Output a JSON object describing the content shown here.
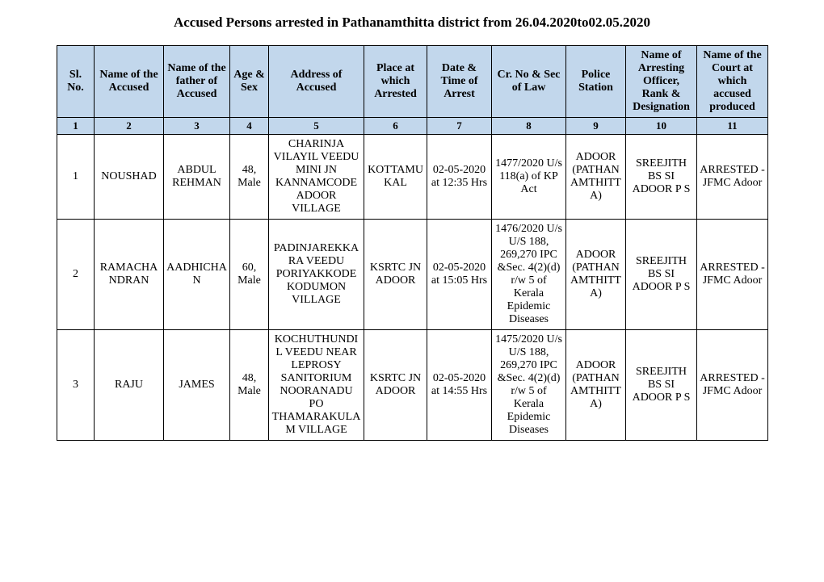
{
  "title": "Accused Persons arrested in  Pathanamthitta  district from  26.04.2020to02.05.2020",
  "colors": {
    "header_bg": "#c2d7ec",
    "border": "#000000",
    "text": "#000000",
    "background": "#ffffff"
  },
  "typography": {
    "title_fontsize_pt": 13,
    "cell_fontsize_pt": 11,
    "font_family": "Times New Roman"
  },
  "table": {
    "columns": [
      "Sl. No.",
      "Name of the Accused",
      "Name of the father of Accused",
      "Age & Sex",
      "Address of Accused",
      "Place at which Arrested",
      "Date & Time of Arrest",
      "Cr. No & Sec of Law",
      "Police Station",
      "Name of Arresting Officer, Rank & Designation",
      "Name of the Court at which accused produced"
    ],
    "number_row": [
      "1",
      "2",
      "3",
      "4",
      "5",
      "6",
      "7",
      "8",
      "9",
      "10",
      "11"
    ],
    "rows": [
      {
        "sl": "1",
        "accused": "NOUSHAD",
        "father": "ABDUL REHMAN",
        "age_sex": "48, Male",
        "address": "CHARINJA VILAYIL VEEDU MINI JN KANNAMCODE ADOOR VILLAGE",
        "place": "KOTTAMUKAL",
        "datetime": "02-05-2020 at 12:35 Hrs",
        "crno": "1477/2020 U/s 118(a) of KP Act",
        "ps": "ADOOR (PATHANAMTHITTA)",
        "officer": "SREEJITH BS SI ADOOR P S",
        "court": "ARRESTED - JFMC Adoor"
      },
      {
        "sl": "2",
        "accused": "RAMACHANDRAN",
        "father": "AADHICHAN",
        "age_sex": "60, Male",
        "address": "PADINJAREKKARA VEEDU PORIYAKKODE KODUMON VILLAGE",
        "place": "KSRTC JN ADOOR",
        "datetime": "02-05-2020 at 15:05 Hrs",
        "crno": "1476/2020 U/s U/S 188, 269,270 IPC &Sec. 4(2)(d) r/w 5 of Kerala Epidemic Diseases",
        "ps": "ADOOR (PATHANAMTHITTA)",
        "officer": "SREEJITH BS SI ADOOR P S",
        "court": "ARRESTED - JFMC Adoor"
      },
      {
        "sl": "3",
        "accused": "RAJU",
        "father": "JAMES",
        "age_sex": "48, Male",
        "address": "KOCHUTHUNDIL VEEDU NEAR LEPROSY SANITORIUM NOORANADU PO THAMARAKULAM VILLAGE",
        "place": "KSRTC JN ADOOR",
        "datetime": "02-05-2020 at 14:55 Hrs",
        "crno": "1475/2020 U/s U/S 188, 269,270 IPC &Sec. 4(2)(d) r/w 5 of Kerala Epidemic Diseases",
        "ps": "ADOOR (PATHANAMTHITTA)",
        "officer": "SREEJITH BS SI ADOOR P S",
        "court": "ARRESTED - JFMC Adoor"
      }
    ]
  }
}
